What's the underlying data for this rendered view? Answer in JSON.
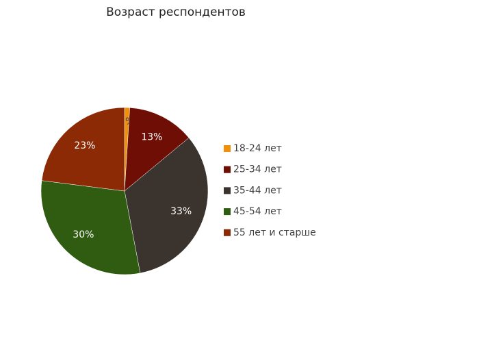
{
  "chart_data": {
    "type": "pie",
    "title": "Возраст респондентов",
    "categories": [
      "18-24 лет",
      "25-34 лет",
      "35-44 лет",
      "45-54 лет",
      "55 лет и старше"
    ],
    "values": [
      1,
      13,
      33,
      30,
      23
    ],
    "value_labels": [
      "1%",
      "13%",
      "33%",
      "30%",
      "23%"
    ],
    "colors": [
      "#f0900a",
      "#6e0e05",
      "#3b332e",
      "#2f5c10",
      "#8c2a06"
    ],
    "legend": "right"
  }
}
